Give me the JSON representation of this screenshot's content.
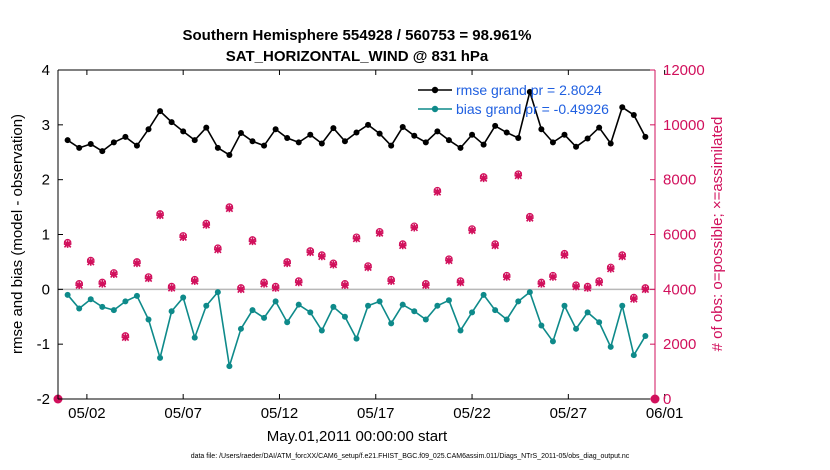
{
  "chart_data": {
    "type": "line",
    "title": "Southern Hemisphere 554928 / 560753 = 98.961%",
    "subtitle": "SAT_HORIZONTAL_WIND @ 831 hPa",
    "xlabel": "May.01,2011 00:00:00 start",
    "ylabel_left": "rmse and bias (model - observation)",
    "ylabel_right": "# of obs: o=possible; ×=assimilated",
    "footnote": "data file: /Users/raeder/DAI/ATM_forcXX/CAM6_setup/f.e21.FHIST_BGC.f09_025.CAM6assim.011/Diags_NTrS_2011-05/obs_diag_output.nc",
    "xlim": [
      0.5,
      31.5
    ],
    "ylim_left": [
      -2,
      4
    ],
    "ylim_right": [
      0,
      12000
    ],
    "x_ticks": [
      2,
      7,
      12,
      17,
      22,
      27,
      32
    ],
    "x_tick_labels": [
      "05/02",
      "05/07",
      "05/12",
      "05/17",
      "05/22",
      "05/27",
      "06/01"
    ],
    "y_ticks_left": [
      "-2",
      "-1",
      "0",
      "1",
      "2",
      "3",
      "4"
    ],
    "y_ticks_right": [
      "0",
      "2000",
      "4000",
      "6000",
      "8000",
      "10000",
      "12000"
    ],
    "colors": {
      "rmse": "#000000",
      "bias": "#0e8a8a",
      "obs": "#d1105c",
      "zero": "#b8b8b8",
      "legend_text": "#1f5fe0"
    },
    "series": [
      {
        "name": "rmse grand pr = 2.8024",
        "axis": "left",
        "values": [
          2.72,
          2.58,
          2.65,
          2.52,
          2.68,
          2.78,
          2.62,
          2.92,
          3.25,
          3.05,
          2.88,
          2.72,
          2.95,
          2.58,
          2.45,
          2.85,
          2.7,
          2.62,
          2.92,
          2.76,
          2.68,
          2.82,
          2.66,
          2.94,
          2.7,
          2.86,
          3.0,
          2.84,
          2.62,
          2.96,
          2.8,
          2.68,
          2.88,
          2.72,
          2.58,
          2.82,
          2.64,
          2.98,
          2.86,
          2.76,
          3.6,
          2.92,
          2.68,
          2.82,
          2.6,
          2.75,
          2.95,
          2.66,
          3.32,
          3.18,
          2.78
        ]
      },
      {
        "name": "bias grand pr = -0.49926",
        "axis": "left",
        "values": [
          -0.1,
          -0.35,
          -0.18,
          -0.32,
          -0.38,
          -0.22,
          -0.12,
          -0.55,
          -1.25,
          -0.4,
          -0.15,
          -0.88,
          -0.3,
          -0.05,
          -1.4,
          -0.72,
          -0.38,
          -0.52,
          -0.22,
          -0.6,
          -0.28,
          -0.42,
          -0.75,
          -0.32,
          -0.5,
          -0.9,
          -0.3,
          -0.22,
          -0.62,
          -0.28,
          -0.4,
          -0.55,
          -0.3,
          -0.2,
          -0.75,
          -0.42,
          -0.1,
          -0.38,
          -0.55,
          -0.22,
          -0.05,
          -0.66,
          -0.95,
          -0.3,
          -0.72,
          -0.42,
          -0.6,
          -1.05,
          -0.3,
          -1.2,
          -0.85
        ]
      },
      {
        "name": "obs possible",
        "axis": "right",
        "values": [
          5700,
          4200,
          5050,
          4250,
          4600,
          2300,
          5000,
          4450,
          6750,
          4100,
          5950,
          4350,
          6400,
          5500,
          7000,
          4050,
          5800,
          4250,
          4100,
          5000,
          4300,
          5400,
          5250,
          4950,
          4200,
          5900,
          4850,
          6100,
          4350,
          5650,
          6300,
          4200,
          7600,
          5100,
          4300,
          6200,
          8100,
          5650,
          4500,
          8200,
          6650,
          4250,
          4500,
          5300,
          4150,
          4100,
          4300,
          4800,
          5250,
          3700,
          4050
        ]
      },
      {
        "name": "obs assimilated",
        "axis": "right",
        "values": [
          5650,
          4150,
          5000,
          4200,
          4550,
          2250,
          4950,
          4400,
          6700,
          4050,
          5900,
          4300,
          6350,
          5450,
          6950,
          4000,
          5750,
          4200,
          4050,
          4950,
          4250,
          5350,
          5200,
          4900,
          4150,
          5850,
          4800,
          6050,
          4300,
          5600,
          6250,
          4150,
          7550,
          5050,
          4250,
          6150,
          8050,
          5600,
          4450,
          8150,
          6600,
          4200,
          4450,
          5250,
          4100,
          4050,
          4250,
          4750,
          5200,
          3650,
          4000
        ]
      }
    ]
  }
}
